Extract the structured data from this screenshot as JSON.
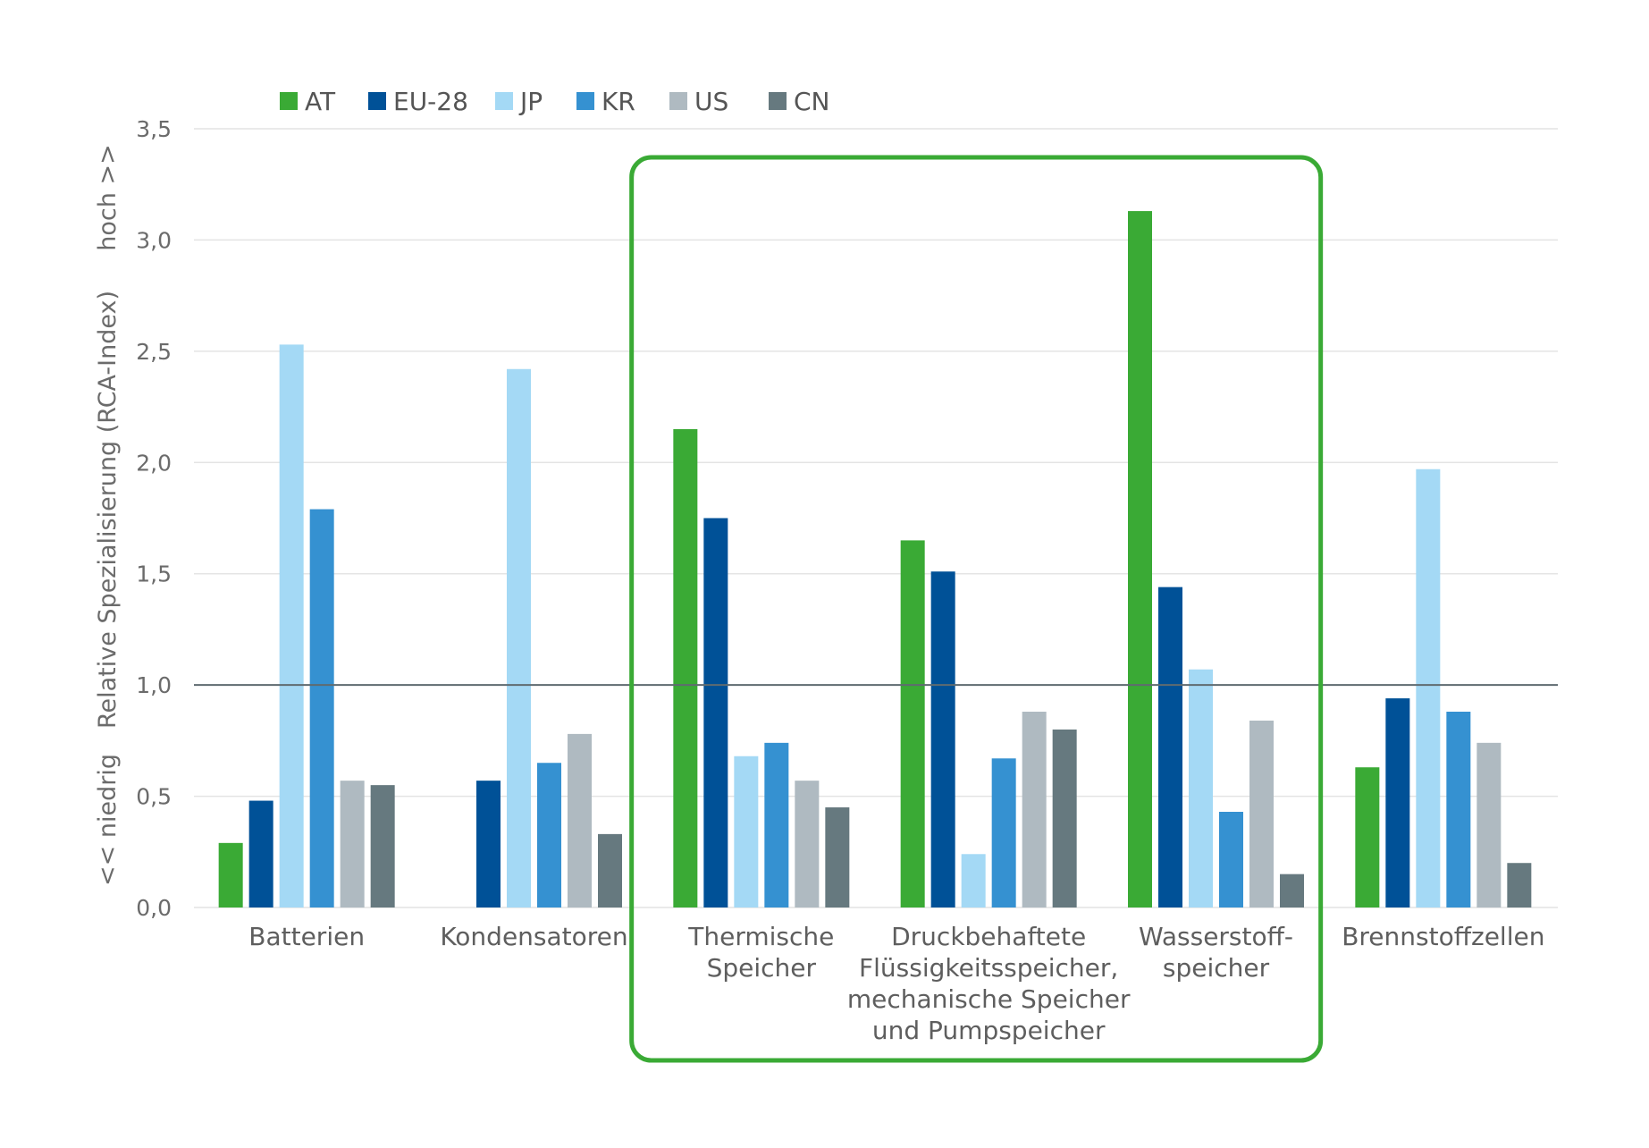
{
  "chart_data": {
    "type": "bar",
    "ylabel": "Relative Spezialisierung (RCA-Index)",
    "y_low_label": "<< niedrig",
    "y_high_label": "hoch >>",
    "ylim": [
      0,
      3.5
    ],
    "y_ticks": [
      "0,0",
      "0,5",
      "1,0",
      "1,5",
      "2,0",
      "2,5",
      "3,0",
      "3,5"
    ],
    "reference_line": 1.0,
    "grid": true,
    "legend_position": "top",
    "categories": [
      [
        "Batterien"
      ],
      [
        "Kondensatoren"
      ],
      [
        "Thermische",
        "Speicher"
      ],
      [
        "Druckbehaftete",
        "Flüssigkeitsspeicher,",
        "mechanische Speicher",
        "und Pumpspeicher"
      ],
      [
        "Wasserstoff-",
        "speicher"
      ],
      [
        "Brennstoffzellen"
      ]
    ],
    "highlighted_categories": [
      2,
      4
    ],
    "series": [
      {
        "name": "AT",
        "color": "#3aaa35",
        "values": [
          0.29,
          0.0,
          2.15,
          1.65,
          3.13,
          0.63
        ]
      },
      {
        "name": "EU-28",
        "color": "#005197",
        "values": [
          0.48,
          0.57,
          1.75,
          1.51,
          1.44,
          0.94
        ]
      },
      {
        "name": "JP",
        "color": "#a4d9f5",
        "values": [
          2.53,
          2.42,
          0.68,
          0.24,
          1.07,
          1.97
        ]
      },
      {
        "name": "KR",
        "color": "#3591d1",
        "values": [
          1.79,
          0.65,
          0.74,
          0.67,
          0.43,
          0.88
        ]
      },
      {
        "name": "US",
        "color": "#afbac1",
        "values": [
          0.57,
          0.78,
          0.57,
          0.88,
          0.84,
          0.74
        ]
      },
      {
        "name": "CN",
        "color": "#66797f",
        "values": [
          0.55,
          0.33,
          0.45,
          0.8,
          0.15,
          0.2
        ]
      }
    ]
  },
  "colors": {
    "highlight_box": "#3aaa35",
    "grid": "#e4e4e4",
    "reference_line": "#5f6b70"
  }
}
